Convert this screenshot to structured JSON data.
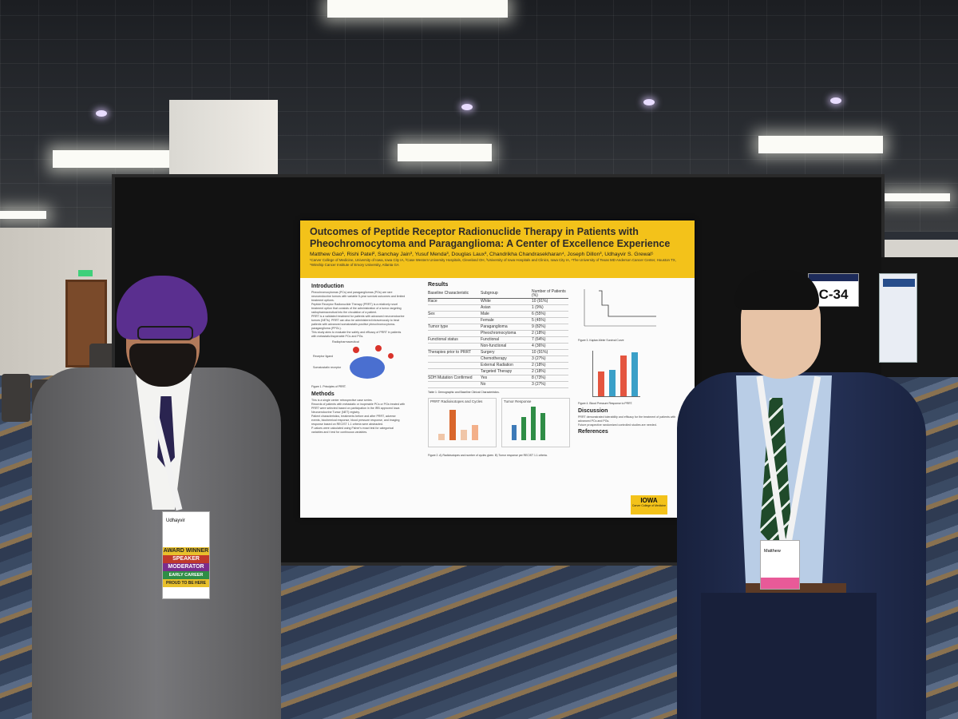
{
  "booth": {
    "number": "C-34"
  },
  "poster": {
    "title": "Outcomes of Peptide Receptor Radionuclide Therapy in Patients with Pheochromocytoma and Paraganglioma: A Center of Excellence Experience",
    "authors": "Matthew Gao¹, Rishi Patel², Sanchay Jain³, Yusuf Menda³, Douglas Laux³, Chandrikha Chandrasekharan⁴, Joseph Dillon³, Udhayvir S. Grewal⁵",
    "affiliations": "¹Carver College of Medicine, University of Iowa, Iowa City IA, ²Case Western University Hospitals, Cleveland OH, ³University of Iowa Hospitals and Clinics, Iowa City IA, ⁴The University of Texas MD Anderson Cancer Center, Houston TX, ⁵Winship Cancer Institute of Emory University, Atlanta GA",
    "sections": {
      "introduction": "Introduction",
      "methods": "Methods",
      "results": "Results",
      "discussion": "Discussion",
      "references": "References"
    },
    "intro_bullets": [
      "Pheochromocytomas (PCs) and paragangliomas (PGs) are rare neuroendocrine tumors with variable 5-year survival outcomes and limited treatment options.",
      "Peptide Receptor Radionuclide Therapy (PRRT) is a relatively novel treatment option that consists of the administration of a tumor-targeting radiopharmaceutical into the circulation of a patient.",
      "PRRT is a validated treatment for patients with advanced neuroendocrine tumors (NETs). PRRT can also be administered intravenously to treat patients with advanced somatostatin-positive pheochromocytoma-paraganglioma (PPGL).",
      "This study aims to evaluate the safety and efficacy of PRRT in patients with metastatic/inoperable PCs and PGs."
    ],
    "figure1_caption": "Figure 1. Principles of PRRT.",
    "figure1_labels": [
      "Radiopharmaceutical",
      "Receptor ligand",
      "Somatostatin receptor"
    ],
    "methods_bullets": [
      "This is a single center retrospective case series.",
      "Records of patients with metastatic or inoperable PCs or PGs treated with PRRT were selected based on participation in the IRB approved Iowa Neuroendocrine Tumor (NET) registry.",
      "Patient characteristics, treatments before and after PRRT, adverse events, biochemical response, blood pressure response, and imaging response based on RECIST 1.1 criteria were abstracted.",
      "P-values were calculated using Fisher's exact test for categorical variables and t test for continuous variables."
    ],
    "table": {
      "headers": [
        "Baseline Characteristic",
        "Subgroup",
        "Number of Patients (%)"
      ],
      "rows": [
        [
          "Race",
          "White",
          "10 (91%)"
        ],
        [
          "",
          "Asian",
          "1 (9%)"
        ],
        [
          "Sex",
          "Male",
          "6 (55%)"
        ],
        [
          "",
          "Female",
          "5 (45%)"
        ],
        [
          "Tumor type",
          "Paraganglioma",
          "9 (82%)"
        ],
        [
          "",
          "Pheochromocytoma",
          "2 (18%)"
        ],
        [
          "Functional status",
          "Functional",
          "7 (64%)"
        ],
        [
          "",
          "Non-functional",
          "4 (36%)"
        ],
        [
          "Therapies prior to PRRT",
          "Surgery",
          "10 (91%)"
        ],
        [
          "",
          "Chemotherapy",
          "3 (27%)"
        ],
        [
          "",
          "External Radiation",
          "2 (18%)"
        ],
        [
          "",
          "Targeted Therapy",
          "2 (18%)"
        ],
        [
          "SDH Mutation Confirmed",
          "Yes",
          "8 (73%)"
        ],
        [
          "",
          "No",
          "3 (27%)"
        ]
      ],
      "caption": "Table 1: Demographic and Baseline Clinical Characteristics."
    },
    "figure2_panels": [
      "PRRT Radioisotopes and Cycles",
      "Tumor Response"
    ],
    "figure2_caption": "Figure 2. A) Radioisotopes and number of cycles given. B) Tumor response per RECIST 1.1 criteria.",
    "figure3_caption": "Figure 3. Kaplan-Meier Survival Curve",
    "figure4_caption": "Figure 4. Blood Pressure Response to PRRT.",
    "discussion_bullets": [
      "PRRT demonstrated tolerability and efficacy for the treatment of patients with advanced PCs and PGs.",
      "Future prospective randomized controlled studies are needed."
    ],
    "logo": {
      "name": "IOWA",
      "sub": "Carver College of Medicine"
    }
  },
  "badges": {
    "left": {
      "name": "Udhayvir",
      "ribbons": [
        "AWARD WINNER",
        "SPEAKER",
        "MODERATOR",
        "EARLY CAREER",
        "PROUD TO BE HERE"
      ]
    },
    "right": {
      "name": "Matthew"
    }
  },
  "colors": {
    "poster_header": "#f3c21a",
    "board": "#121212",
    "turban": "#5a2f8f",
    "suit_left": "#6b6b6d",
    "suit_right": "#1f2a4a",
    "carpet": "#3a4a63"
  }
}
